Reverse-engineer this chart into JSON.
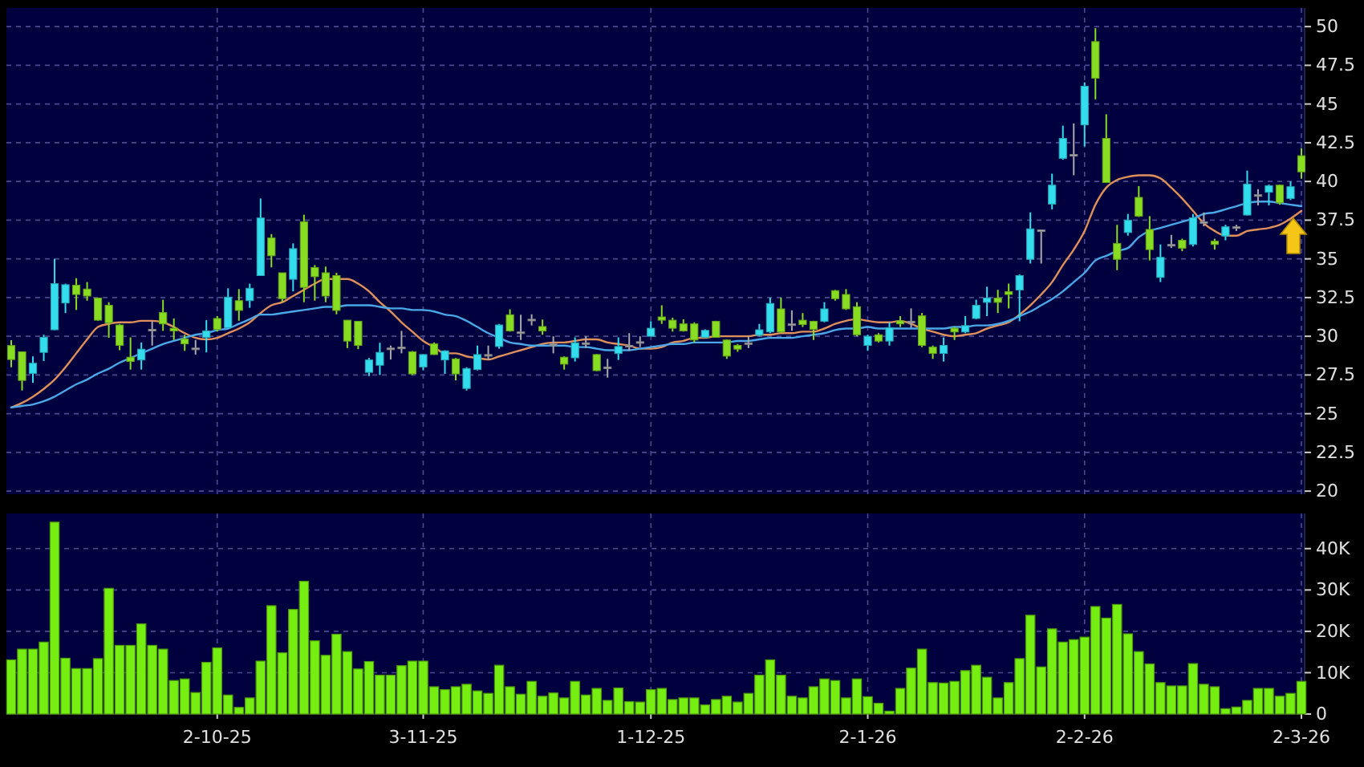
{
  "chart_data": [
    {
      "type": "candlestick",
      "categories": [
        null,
        null,
        null,
        null,
        null,
        null,
        null,
        null,
        null,
        null,
        null,
        null,
        null,
        null,
        null,
        null,
        null,
        null,
        null,
        null,
        null,
        null,
        null,
        null,
        null,
        null,
        null,
        null,
        null,
        null,
        null,
        null,
        null,
        null,
        null,
        null,
        null,
        null,
        null,
        null,
        null,
        null,
        null,
        null,
        null,
        null,
        null,
        null,
        null,
        null,
        null,
        null,
        null,
        null,
        null,
        null,
        null,
        null,
        null,
        null,
        null,
        null,
        null,
        null,
        null,
        null,
        null,
        null,
        null,
        null,
        null,
        null,
        null,
        null,
        null,
        null,
        null,
        null,
        null,
        null,
        null,
        null,
        null,
        null,
        null,
        null,
        null,
        null,
        null,
        null,
        null,
        null,
        null,
        null,
        null,
        null,
        null,
        null,
        null,
        null,
        null,
        null,
        null,
        null,
        null,
        null,
        null,
        null,
        null,
        null,
        null,
        null,
        null,
        null,
        null,
        null,
        null,
        null,
        null,
        null
      ],
      "ohlc": [
        [
          29.4,
          29.75,
          28.0,
          28.5
        ],
        [
          29.0,
          29.0,
          26.5,
          27.15
        ],
        [
          27.6,
          28.7,
          27.0,
          28.26
        ],
        [
          28.96,
          30.1,
          28.4,
          29.93
        ],
        [
          30.42,
          35.0,
          30.4,
          33.4
        ],
        [
          32.15,
          33.4,
          31.5,
          33.33
        ],
        [
          33.3,
          33.75,
          31.7,
          32.7
        ],
        [
          33.05,
          33.5,
          32.3,
          32.6
        ],
        [
          32.47,
          32.5,
          31.0,
          31.04
        ],
        [
          32.0,
          32.2,
          29.9,
          30.87
        ],
        [
          30.73,
          30.8,
          29.1,
          29.41
        ],
        [
          28.65,
          29.93,
          27.85,
          28.37
        ],
        [
          28.47,
          29.6,
          27.85,
          29.17
        ],
        [
          30.45,
          31.0,
          29.4,
          30.45
        ],
        [
          31.53,
          32.36,
          30.35,
          30.8
        ],
        [
          30.52,
          31.15,
          29.76,
          30.35
        ],
        [
          29.83,
          30.1,
          29.06,
          29.51
        ],
        [
          29.24,
          29.76,
          28.82,
          29.24
        ],
        [
          29.93,
          31.04,
          28.96,
          30.35
        ],
        [
          31.15,
          31.3,
          30.3,
          30.45
        ],
        [
          30.56,
          33.1,
          30.5,
          32.53
        ],
        [
          32.3,
          33.05,
          31.0,
          31.67
        ],
        [
          32.3,
          33.4,
          31.84,
          33.1
        ],
        [
          33.92,
          38.9,
          33.9,
          37.64
        ],
        [
          36.35,
          36.6,
          34.45,
          35.2
        ],
        [
          34.1,
          34.1,
          32.2,
          32.43
        ],
        [
          33.68,
          36.0,
          32.9,
          35.66
        ],
        [
          37.4,
          37.85,
          32.2,
          33.16
        ],
        [
          34.44,
          34.6,
          32.3,
          33.85
        ],
        [
          34.1,
          34.5,
          32.2,
          32.6
        ],
        [
          33.92,
          34.1,
          31.42,
          31.67
        ],
        [
          31.04,
          31.04,
          29.24,
          29.69
        ],
        [
          30.97,
          30.97,
          29.17,
          29.41
        ],
        [
          27.67,
          28.6,
          27.43,
          28.47
        ],
        [
          28.13,
          29.58,
          27.5,
          28.96
        ],
        [
          29.24,
          29.4,
          28.5,
          29.24
        ],
        [
          29.3,
          30.35,
          28.9,
          29.3
        ],
        [
          29.0,
          29.05,
          27.5,
          27.57
        ],
        [
          28.02,
          28.85,
          27.8,
          28.82
        ],
        [
          29.51,
          29.6,
          28.8,
          28.82
        ],
        [
          28.47,
          29.1,
          27.57,
          29.06
        ],
        [
          28.54,
          28.6,
          27.15,
          27.57
        ],
        [
          26.63,
          28.0,
          26.5,
          27.92
        ],
        [
          27.85,
          29.4,
          27.8,
          28.82
        ],
        [
          28.82,
          29.4,
          28.47,
          28.82
        ],
        [
          29.34,
          30.8,
          29.2,
          30.73
        ],
        [
          31.39,
          31.74,
          30.3,
          30.35
        ],
        [
          30.28,
          31.39,
          29.76,
          30.28
        ],
        [
          31.1,
          31.42,
          30.7,
          31.1
        ],
        [
          30.63,
          31.08,
          30.1,
          30.35
        ],
        [
          29.5,
          30.0,
          28.9,
          29.5
        ],
        [
          28.65,
          28.7,
          27.85,
          28.2
        ],
        [
          28.61,
          29.93,
          28.37,
          29.58
        ],
        [
          29.58,
          30.0,
          29.24,
          29.58
        ],
        [
          28.82,
          28.85,
          27.75,
          27.78
        ],
        [
          28.02,
          28.54,
          27.33,
          28.02
        ],
        [
          28.89,
          29.93,
          28.47,
          29.34
        ],
        [
          29.41,
          30.2,
          29.06,
          29.41
        ],
        [
          29.65,
          30.0,
          29.3,
          29.65
        ],
        [
          30.0,
          30.97,
          30.0,
          30.52
        ],
        [
          31.25,
          32.0,
          30.8,
          31.04
        ],
        [
          31.04,
          31.2,
          30.3,
          30.52
        ],
        [
          30.8,
          31.1,
          30.3,
          30.35
        ],
        [
          30.8,
          30.9,
          29.6,
          29.76
        ],
        [
          29.93,
          30.45,
          29.9,
          30.38
        ],
        [
          30.97,
          31.0,
          29.9,
          29.93
        ],
        [
          29.76,
          29.8,
          28.54,
          28.72
        ],
        [
          29.41,
          29.5,
          29.0,
          29.17
        ],
        [
          29.58,
          30.0,
          29.24,
          29.58
        ],
        [
          30.07,
          30.8,
          30.0,
          30.42
        ],
        [
          30.28,
          32.5,
          30.2,
          32.12
        ],
        [
          31.77,
          32.5,
          30.2,
          30.28
        ],
        [
          30.8,
          31.67,
          30.35,
          30.8
        ],
        [
          31.04,
          31.5,
          30.6,
          30.76
        ],
        [
          30.97,
          31.0,
          29.76,
          30.45
        ],
        [
          30.97,
          32.2,
          30.9,
          31.77
        ],
        [
          32.95,
          33.0,
          32.3,
          32.43
        ],
        [
          32.7,
          33.05,
          31.7,
          31.77
        ],
        [
          31.91,
          32.2,
          30.0,
          30.1
        ],
        [
          29.41,
          30.1,
          29.06,
          30.0
        ],
        [
          30.1,
          30.2,
          29.6,
          29.69
        ],
        [
          29.69,
          30.9,
          29.4,
          30.56
        ],
        [
          31.0,
          31.3,
          30.6,
          30.8
        ],
        [
          30.97,
          31.8,
          30.55,
          30.97
        ],
        [
          31.32,
          31.5,
          29.3,
          29.41
        ],
        [
          29.3,
          29.4,
          28.54,
          28.89
        ],
        [
          28.89,
          29.93,
          28.37,
          29.41
        ],
        [
          30.52,
          30.6,
          29.76,
          30.28
        ],
        [
          30.28,
          31.3,
          30.2,
          30.69
        ],
        [
          31.15,
          32.36,
          31.1,
          32.0
        ],
        [
          32.19,
          33.2,
          31.3,
          32.47
        ],
        [
          32.47,
          33.0,
          31.5,
          32.19
        ],
        [
          32.88,
          33.4,
          31.8,
          32.7
        ],
        [
          32.99,
          34.0,
          30.97,
          33.92
        ],
        [
          34.97,
          38.0,
          34.7,
          36.94
        ],
        [
          36.87,
          36.9,
          34.7,
          36.87
        ],
        [
          38.54,
          40.5,
          38.2,
          39.76
        ],
        [
          41.49,
          43.6,
          41.4,
          42.78
        ],
        [
          41.74,
          43.75,
          40.4,
          41.74
        ],
        [
          43.65,
          46.4,
          42.26,
          46.15
        ],
        [
          49.03,
          49.9,
          45.3,
          46.67
        ],
        [
          42.78,
          44.34,
          39.9,
          39.93
        ],
        [
          36.0,
          37.2,
          34.27,
          34.97
        ],
        [
          36.7,
          37.9,
          36.5,
          37.5
        ],
        [
          38.97,
          39.7,
          37.7,
          37.76
        ],
        [
          36.9,
          37.76,
          34.9,
          35.6
        ],
        [
          33.8,
          35.93,
          33.5,
          35.1
        ],
        [
          35.93,
          36.55,
          35.7,
          35.93
        ],
        [
          36.2,
          36.3,
          35.5,
          35.69
        ],
        [
          35.93,
          37.9,
          35.8,
          37.65
        ],
        [
          37.4,
          38.0,
          37.1,
          37.4
        ],
        [
          36.14,
          36.3,
          35.6,
          35.93
        ],
        [
          36.48,
          37.2,
          36.2,
          37.07
        ],
        [
          37.07,
          37.2,
          36.8,
          37.07
        ],
        [
          37.83,
          40.7,
          37.8,
          39.83
        ],
        [
          39.14,
          39.5,
          38.45,
          39.14
        ],
        [
          39.3,
          39.8,
          38.45,
          39.72
        ],
        [
          39.76,
          39.8,
          38.5,
          38.62
        ],
        [
          38.9,
          40.0,
          38.8,
          39.66
        ],
        [
          41.66,
          42.14,
          40.17,
          40.62
        ]
      ],
      "colors": [
        "#88dd22",
        "#88dd22",
        "#33ddee",
        "#33ddee",
        "#33ddee",
        "#33ddee",
        "#88dd22",
        "#88dd22",
        "#88dd22",
        "#88dd22",
        "#88dd22",
        "#88dd22",
        "#33ddee",
        "#aaaaaa",
        "#88dd22",
        "#88dd22",
        "#88dd22",
        "#aaaaaa",
        "#33ddee",
        "#88dd22",
        "#33ddee",
        "#88dd22",
        "#33ddee",
        "#33ddee",
        "#88dd22",
        "#88dd22",
        "#33ddee",
        "#88dd22",
        "#88dd22",
        "#88dd22",
        "#88dd22",
        "#88dd22",
        "#88dd22",
        "#33ddee",
        "#33ddee",
        "#aaaaaa",
        "#aaaaaa",
        "#88dd22",
        "#33ddee",
        "#88dd22",
        "#33ddee",
        "#88dd22",
        "#33ddee",
        "#33ddee",
        "#aaaaaa",
        "#33ddee",
        "#88dd22",
        "#aaaaaa",
        "#aaaaaa",
        "#88dd22",
        "#aaaaaa",
        "#88dd22",
        "#33ddee",
        "#aaaaaa",
        "#88dd22",
        "#aaaaaa",
        "#33ddee",
        "#aaaaaa",
        "#aaaaaa",
        "#33ddee",
        "#88dd22",
        "#88dd22",
        "#88dd22",
        "#88dd22",
        "#33ddee",
        "#88dd22",
        "#88dd22",
        "#88dd22",
        "#aaaaaa",
        "#33ddee",
        "#33ddee",
        "#88dd22",
        "#aaaaaa",
        "#88dd22",
        "#88dd22",
        "#33ddee",
        "#88dd22",
        "#88dd22",
        "#88dd22",
        "#33ddee",
        "#88dd22",
        "#33ddee",
        "#88dd22",
        "#aaaaaa",
        "#88dd22",
        "#88dd22",
        "#33ddee",
        "#88dd22",
        "#33ddee",
        "#33ddee",
        "#33ddee",
        "#88dd22",
        "#88dd22",
        "#33ddee",
        "#33ddee",
        "#aaaaaa",
        "#33ddee",
        "#33ddee",
        "#aaaaaa",
        "#33ddee",
        "#88dd22",
        "#88dd22",
        "#88dd22",
        "#33ddee",
        "#88dd22",
        "#88dd22",
        "#33ddee",
        "#aaaaaa",
        "#88dd22",
        "#33ddee",
        "#aaaaaa",
        "#88dd22",
        "#33ddee",
        "#aaaaaa",
        "#33ddee",
        "#aaaaaa",
        "#33ddee",
        "#88dd22",
        "#33ddee",
        "#88dd22"
      ],
      "series": [
        {
          "type": "line",
          "color": "#e0905a",
          "values": [
            25.4,
            25.7,
            26.1,
            26.6,
            27.2,
            28.0,
            28.9,
            29.8,
            30.6,
            30.8,
            30.9,
            30.9,
            31.0,
            31.0,
            30.9,
            30.6,
            30.2,
            29.9,
            29.8,
            29.9,
            30.2,
            30.5,
            30.9,
            31.5,
            32.0,
            32.2,
            32.6,
            33.0,
            33.4,
            33.7,
            33.7,
            33.7,
            33.4,
            32.9,
            32.2,
            31.6,
            30.9,
            30.3,
            29.7,
            29.3,
            28.9,
            28.9,
            28.7,
            28.6,
            28.5,
            28.7,
            28.9,
            29.1,
            29.3,
            29.5,
            29.6,
            29.6,
            29.7,
            29.8,
            29.8,
            29.6,
            29.5,
            29.4,
            29.2,
            29.2,
            29.3,
            29.6,
            29.7,
            29.9,
            29.9,
            30.0,
            30.0,
            30.0,
            30.0,
            30.1,
            30.1,
            30.2,
            30.2,
            30.3,
            30.3,
            30.5,
            30.8,
            31.0,
            31.1,
            31.0,
            30.9,
            30.9,
            31.0,
            30.8,
            30.5,
            30.3,
            30.1,
            30.0,
            30.1,
            30.2,
            30.5,
            30.7,
            30.9,
            31.4,
            32.0,
            32.7,
            33.5,
            34.6,
            35.6,
            36.8,
            38.5,
            39.6,
            40.1,
            40.3,
            40.4,
            40.4,
            40.2,
            39.6,
            38.9,
            38.1,
            37.3,
            36.8,
            36.5,
            36.5,
            36.8,
            36.9,
            37.0,
            37.2,
            37.6,
            38.1
          ]
        },
        {
          "type": "line",
          "color": "#4aa8e8",
          "values": [
            25.4,
            25.5,
            25.6,
            25.8,
            26.1,
            26.5,
            26.9,
            27.2,
            27.6,
            27.9,
            28.3,
            28.6,
            28.9,
            29.2,
            29.5,
            29.7,
            29.9,
            30.1,
            30.2,
            30.4,
            30.5,
            30.8,
            31.1,
            31.4,
            31.4,
            31.5,
            31.6,
            31.7,
            31.8,
            31.9,
            31.9,
            32.0,
            32.0,
            32.0,
            31.9,
            31.8,
            31.8,
            31.7,
            31.7,
            31.6,
            31.4,
            31.3,
            31.0,
            30.6,
            30.2,
            29.9,
            29.6,
            29.5,
            29.4,
            29.4,
            29.4,
            29.4,
            29.3,
            29.3,
            29.2,
            29.1,
            29.1,
            29.1,
            29.2,
            29.3,
            29.4,
            29.5,
            29.5,
            29.6,
            29.6,
            29.6,
            29.6,
            29.7,
            29.7,
            29.8,
            29.9,
            29.9,
            29.9,
            30.0,
            30.1,
            30.2,
            30.4,
            30.5,
            30.5,
            30.6,
            30.5,
            30.5,
            30.5,
            30.5,
            30.5,
            30.5,
            30.5,
            30.6,
            30.6,
            30.7,
            30.7,
            30.8,
            31.0,
            31.3,
            31.6,
            32.0,
            32.4,
            32.9,
            33.5,
            34.1,
            34.9,
            35.2,
            35.5,
            35.7,
            36.4,
            36.8,
            37.0,
            37.2,
            37.4,
            37.6,
            37.9,
            38.0,
            38.2,
            38.4,
            38.6,
            38.7,
            38.7,
            38.6,
            38.5,
            38.4
          ]
        }
      ],
      "ylim": [
        19.8,
        51.2
      ],
      "yticks": [
        20,
        22.5,
        25,
        27.5,
        30,
        32.5,
        35,
        37.5,
        40,
        42.5,
        45,
        47.5,
        50
      ],
      "grid": true,
      "tick_labels": "y"
    },
    {
      "type": "bar",
      "categories": [
        null,
        null,
        null,
        null,
        null,
        null,
        null,
        null,
        null,
        null,
        null,
        null,
        null,
        null,
        null,
        null,
        null,
        null,
        null,
        "2-10-25",
        null,
        null,
        null,
        null,
        null,
        null,
        null,
        null,
        null,
        null,
        null,
        null,
        null,
        null,
        null,
        null,
        null,
        null,
        "3-11-25",
        null,
        null,
        null,
        null,
        null,
        null,
        null,
        null,
        null,
        null,
        null,
        null,
        null,
        null,
        null,
        null,
        null,
        null,
        null,
        null,
        "1-12-25",
        null,
        null,
        null,
        null,
        null,
        null,
        null,
        null,
        null,
        null,
        null,
        null,
        null,
        null,
        null,
        null,
        null,
        null,
        null,
        "2-1-26",
        null,
        null,
        null,
        null,
        null,
        null,
        null,
        null,
        null,
        null,
        null,
        null,
        null,
        null,
        null,
        null,
        null,
        null,
        null,
        "2-2-26",
        null,
        null,
        null,
        null,
        null,
        null,
        null,
        null,
        null,
        null,
        null,
        null,
        null,
        null,
        null,
        null,
        null,
        null,
        null,
        "2-3-26"
      ],
      "values": [
        13100,
        15700,
        15700,
        17400,
        46400,
        13500,
        11000,
        11000,
        13400,
        30400,
        16600,
        16600,
        21800,
        16600,
        15700,
        8100,
        8500,
        5200,
        12500,
        16000,
        4600,
        1600,
        3900,
        12800,
        26200,
        14800,
        25300,
        32100,
        17700,
        14200,
        19300,
        15100,
        10900,
        12700,
        9400,
        9400,
        11700,
        12800,
        12800,
        6600,
        5900,
        6600,
        7200,
        5600,
        5000,
        11800,
        6600,
        4800,
        7900,
        4300,
        5100,
        3900,
        7900,
        4600,
        6200,
        3300,
        6300,
        3000,
        2900,
        5900,
        6200,
        3500,
        3900,
        3900,
        2200,
        3500,
        4300,
        2900,
        5000,
        9400,
        13100,
        9400,
        4300,
        3900,
        6600,
        8500,
        8100,
        3900,
        8500,
        4200,
        2600,
        700,
        6200,
        11100,
        15700,
        7600,
        7500,
        7900,
        10500,
        11800,
        8900,
        3900,
        7600,
        13400,
        23900,
        11400,
        20600,
        17400,
        18000,
        18600,
        26000,
        23200,
        26500,
        19400,
        15100,
        12100,
        7600,
        6800,
        6800,
        12200,
        7200,
        6600,
        1300,
        1700,
        3300,
        6200,
        6200,
        4300,
        5000,
        7900
      ],
      "color": "#77ee11",
      "ylim": [
        0,
        48500
      ],
      "yticks": [
        0,
        {
          "value": 10000,
          "label": "10K"
        },
        {
          "value": 20000,
          "label": "20K"
        },
        {
          "value": 30000,
          "label": "30K"
        },
        {
          "value": 40000,
          "label": "40K"
        }
      ],
      "grid": true
    }
  ]
}
